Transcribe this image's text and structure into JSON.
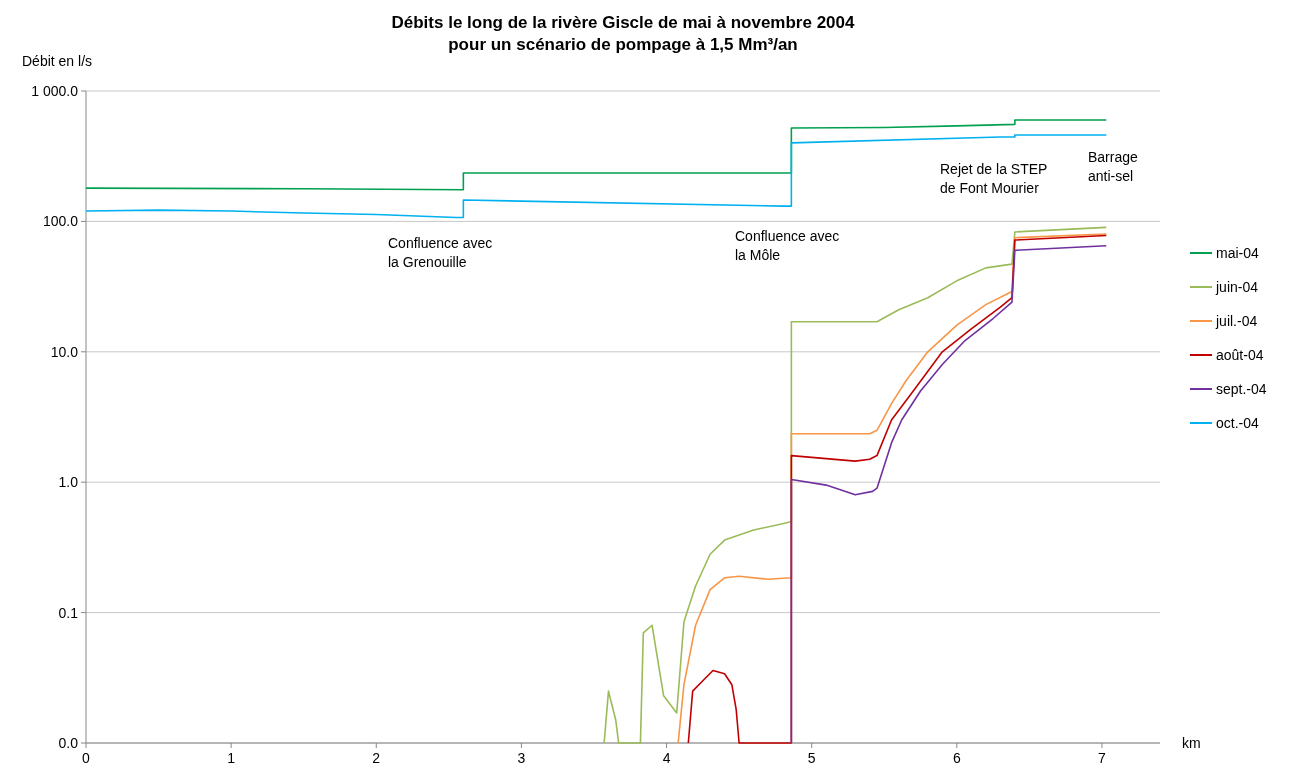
{
  "chart_data": {
    "type": "line",
    "title": "Débits le long de la rivère Giscle de mai à novembre 2004\npour un scénario de pompage à 1,5 Mm³/an",
    "xlabel": "km",
    "ylabel": "Débit en l/s",
    "log": "y",
    "grid": "y",
    "legend": "right",
    "marker": "none",
    "line_style": "solid",
    "xlim": [
      0,
      7.4
    ],
    "xticks": [
      0,
      1,
      2,
      3,
      4,
      5,
      6,
      7
    ],
    "ylim": [
      0.01,
      1000
    ],
    "yticks": [
      {
        "value": 0.01,
        "label": "0.0"
      },
      {
        "value": 0.1,
        "label": "0.1"
      },
      {
        "value": 1,
        "label": "1.0"
      },
      {
        "value": 10,
        "label": "10.0"
      },
      {
        "value": 100,
        "label": "100.0"
      },
      {
        "value": 1000,
        "label": "1 000.0"
      }
    ],
    "annotations": [
      "Confluence avec\nla Grenouille",
      "Confluence avec\nla Môle",
      "Rejet de la STEP\nde Font Mourier",
      "Barrage\nanti-sel"
    ],
    "series": [
      {
        "name": "mai-04",
        "color": "#00a050",
        "x": [
          0,
          1.5,
          2.6,
          2.6,
          4.86,
          4.86,
          5.5,
          6.0,
          6.4,
          6.4,
          7.03
        ],
        "values": [
          180,
          178,
          175,
          235,
          235,
          520,
          525,
          540,
          555,
          600,
          600
        ]
      },
      {
        "name": "juin-04",
        "color": "#9bbb59",
        "x": [
          3.57,
          3.6,
          3.65,
          3.67,
          3.82,
          3.84,
          3.9,
          3.98,
          4.07,
          4.12,
          4.2,
          4.3,
          4.4,
          4.6,
          4.8,
          4.86,
          4.86,
          5.45,
          5.6,
          5.8,
          6.0,
          6.2,
          6.38,
          6.4,
          7.03
        ],
        "values": [
          0.01,
          0.025,
          0.015,
          0.01,
          0.01,
          0.07,
          0.08,
          0.023,
          0.017,
          0.085,
          0.16,
          0.28,
          0.36,
          0.43,
          0.48,
          0.5,
          17,
          17,
          21,
          26,
          35,
          44,
          47,
          83,
          90
        ]
      },
      {
        "name": "juil.-04",
        "color": "#f79646",
        "x": [
          4.08,
          4.12,
          4.2,
          4.3,
          4.4,
          4.5,
          4.7,
          4.86,
          4.86,
          5.4,
          5.45,
          5.55,
          5.65,
          5.8,
          6.0,
          6.2,
          6.38,
          6.4,
          7.03
        ],
        "values": [
          0.01,
          0.028,
          0.08,
          0.15,
          0.185,
          0.19,
          0.18,
          0.185,
          2.35,
          2.35,
          2.5,
          4,
          6,
          10,
          16,
          23,
          29,
          75,
          80
        ]
      },
      {
        "name": "août-04",
        "color": "#c00000",
        "x": [
          4.15,
          4.18,
          4.25,
          4.32,
          4.4,
          4.45,
          4.48,
          4.5,
          4.86,
          4.86,
          5.3,
          5.4,
          5.45,
          5.55,
          5.7,
          5.9,
          6.1,
          6.3,
          6.38,
          6.4,
          7.03
        ],
        "values": [
          0.01,
          0.025,
          0.03,
          0.036,
          0.034,
          0.028,
          0.018,
          0.01,
          0.01,
          1.6,
          1.45,
          1.5,
          1.6,
          3,
          5,
          10,
          15,
          22,
          26,
          72,
          78
        ]
      },
      {
        "name": "sept.-04",
        "color": "#7030a0",
        "x": [
          4.86,
          4.86,
          5.1,
          5.3,
          5.42,
          5.45,
          5.55,
          5.62,
          5.75,
          5.9,
          6.05,
          6.25,
          6.38,
          6.4,
          7.03
        ],
        "values": [
          0.01,
          1.05,
          0.95,
          0.8,
          0.85,
          0.9,
          2,
          3,
          5,
          8,
          12,
          18,
          24,
          60,
          65
        ]
      },
      {
        "name": "oct.-04",
        "color": "#00b0f0",
        "x": [
          0,
          0.5,
          1.0,
          1.5,
          2.0,
          2.55,
          2.6,
          2.6,
          4.8,
          4.86,
          4.86,
          6.3,
          6.4,
          6.4,
          7.03
        ],
        "values": [
          120,
          122,
          120,
          116,
          113,
          107,
          107,
          146,
          131,
          131,
          400,
          444,
          444,
          460,
          460
        ]
      }
    ]
  }
}
